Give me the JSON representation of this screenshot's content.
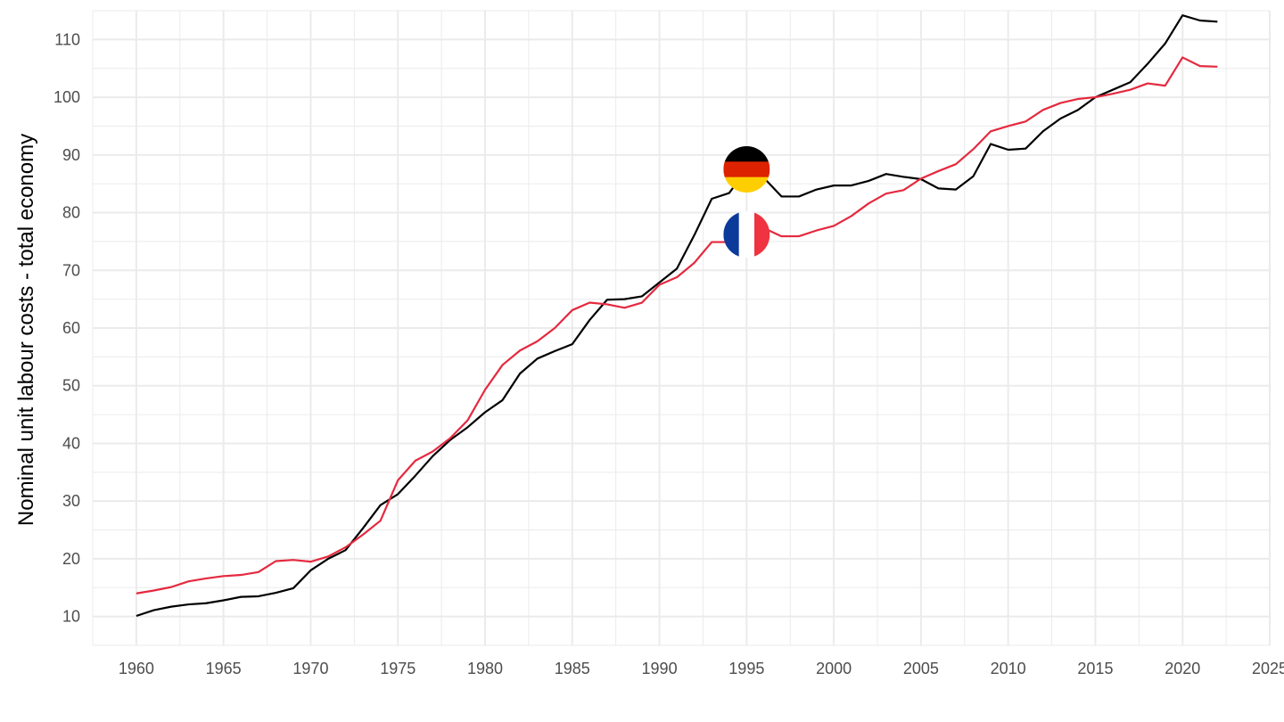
{
  "chart_data": {
    "type": "line",
    "title": "",
    "xlabel": "",
    "ylabel": "Nominal unit labour costs - total economy",
    "xlim": [
      1957.5,
      2025
    ],
    "ylim": [
      5,
      115
    ],
    "x_ticks": [
      1960,
      1965,
      1970,
      1975,
      1980,
      1985,
      1990,
      1995,
      2000,
      2005,
      2010,
      2015,
      2020,
      2025
    ],
    "y_ticks": [
      10,
      20,
      30,
      40,
      50,
      60,
      70,
      80,
      90,
      100,
      110
    ],
    "grid": true,
    "legend": "none",
    "series": [
      {
        "key": "germany",
        "color": "#000000",
        "flag_icon": "germany-flag-icon",
        "flag_year": 1995,
        "flag_value": 87.5,
        "x": [
          1960,
          1961,
          1962,
          1963,
          1964,
          1965,
          1966,
          1967,
          1968,
          1969,
          1970,
          1971,
          1972,
          1973,
          1974,
          1975,
          1976,
          1977,
          1978,
          1979,
          1980,
          1981,
          1982,
          1983,
          1984,
          1985,
          1986,
          1987,
          1988,
          1989,
          1990,
          1991,
          1992,
          1993,
          1994,
          1995,
          1996,
          1997,
          1998,
          1999,
          2000,
          2001,
          2002,
          2003,
          2004,
          2005,
          2006,
          2007,
          2008,
          2009,
          2010,
          2011,
          2012,
          2013,
          2014,
          2015,
          2016,
          2017,
          2018,
          2019,
          2020,
          2021,
          2022
        ],
        "values": [
          10.1,
          11.1,
          11.7,
          12.1,
          12.3,
          12.8,
          13.4,
          13.5,
          14.1,
          14.9,
          18.0,
          20.0,
          21.5,
          25.3,
          29.3,
          31.2,
          34.4,
          37.8,
          40.6,
          42.8,
          45.4,
          47.5,
          52.1,
          54.7,
          56.0,
          57.2,
          61.4,
          64.9,
          65.0,
          65.5,
          67.9,
          70.3,
          76.1,
          82.4,
          83.4,
          87.5,
          86.0,
          82.8,
          82.8,
          84.0,
          84.7,
          84.7,
          85.5,
          86.7,
          86.2,
          85.8,
          84.2,
          84.0,
          86.3,
          91.9,
          90.9,
          91.1,
          94.1,
          96.3,
          97.8,
          100.0,
          101.3,
          102.6,
          105.8,
          109.3,
          114.2,
          113.3,
          113.1
        ]
      },
      {
        "key": "france",
        "color": "#e5293f",
        "flag_icon": "france-flag-icon",
        "flag_year": 1995,
        "flag_value": 76.2,
        "x": [
          1960,
          1961,
          1962,
          1963,
          1964,
          1965,
          1966,
          1967,
          1968,
          1969,
          1970,
          1971,
          1972,
          1973,
          1974,
          1975,
          1976,
          1977,
          1978,
          1979,
          1980,
          1981,
          1982,
          1983,
          1984,
          1985,
          1986,
          1987,
          1988,
          1989,
          1990,
          1991,
          1992,
          1993,
          1994,
          1995,
          1996,
          1997,
          1998,
          1999,
          2000,
          2001,
          2002,
          2003,
          2004,
          2005,
          2006,
          2007,
          2008,
          2009,
          2010,
          2011,
          2012,
          2013,
          2014,
          2015,
          2016,
          2017,
          2018,
          2019,
          2020,
          2021,
          2022
        ],
        "values": [
          14.0,
          14.5,
          15.1,
          16.1,
          16.6,
          17.0,
          17.2,
          17.7,
          19.6,
          19.8,
          19.5,
          20.4,
          22.0,
          24.2,
          26.6,
          33.6,
          37.0,
          38.6,
          40.9,
          44.0,
          49.3,
          53.6,
          56.1,
          57.7,
          60.0,
          63.1,
          64.4,
          64.1,
          63.5,
          64.4,
          67.5,
          68.8,
          71.3,
          74.9,
          74.9,
          76.2,
          77.3,
          75.9,
          75.9,
          76.9,
          77.7,
          79.4,
          81.6,
          83.3,
          83.9,
          85.9,
          87.2,
          88.4,
          91.0,
          94.1,
          95.0,
          95.8,
          97.8,
          99.0,
          99.7,
          100.0,
          100.6,
          101.3,
          102.4,
          102.0,
          106.9,
          105.4,
          105.3
        ]
      }
    ]
  }
}
